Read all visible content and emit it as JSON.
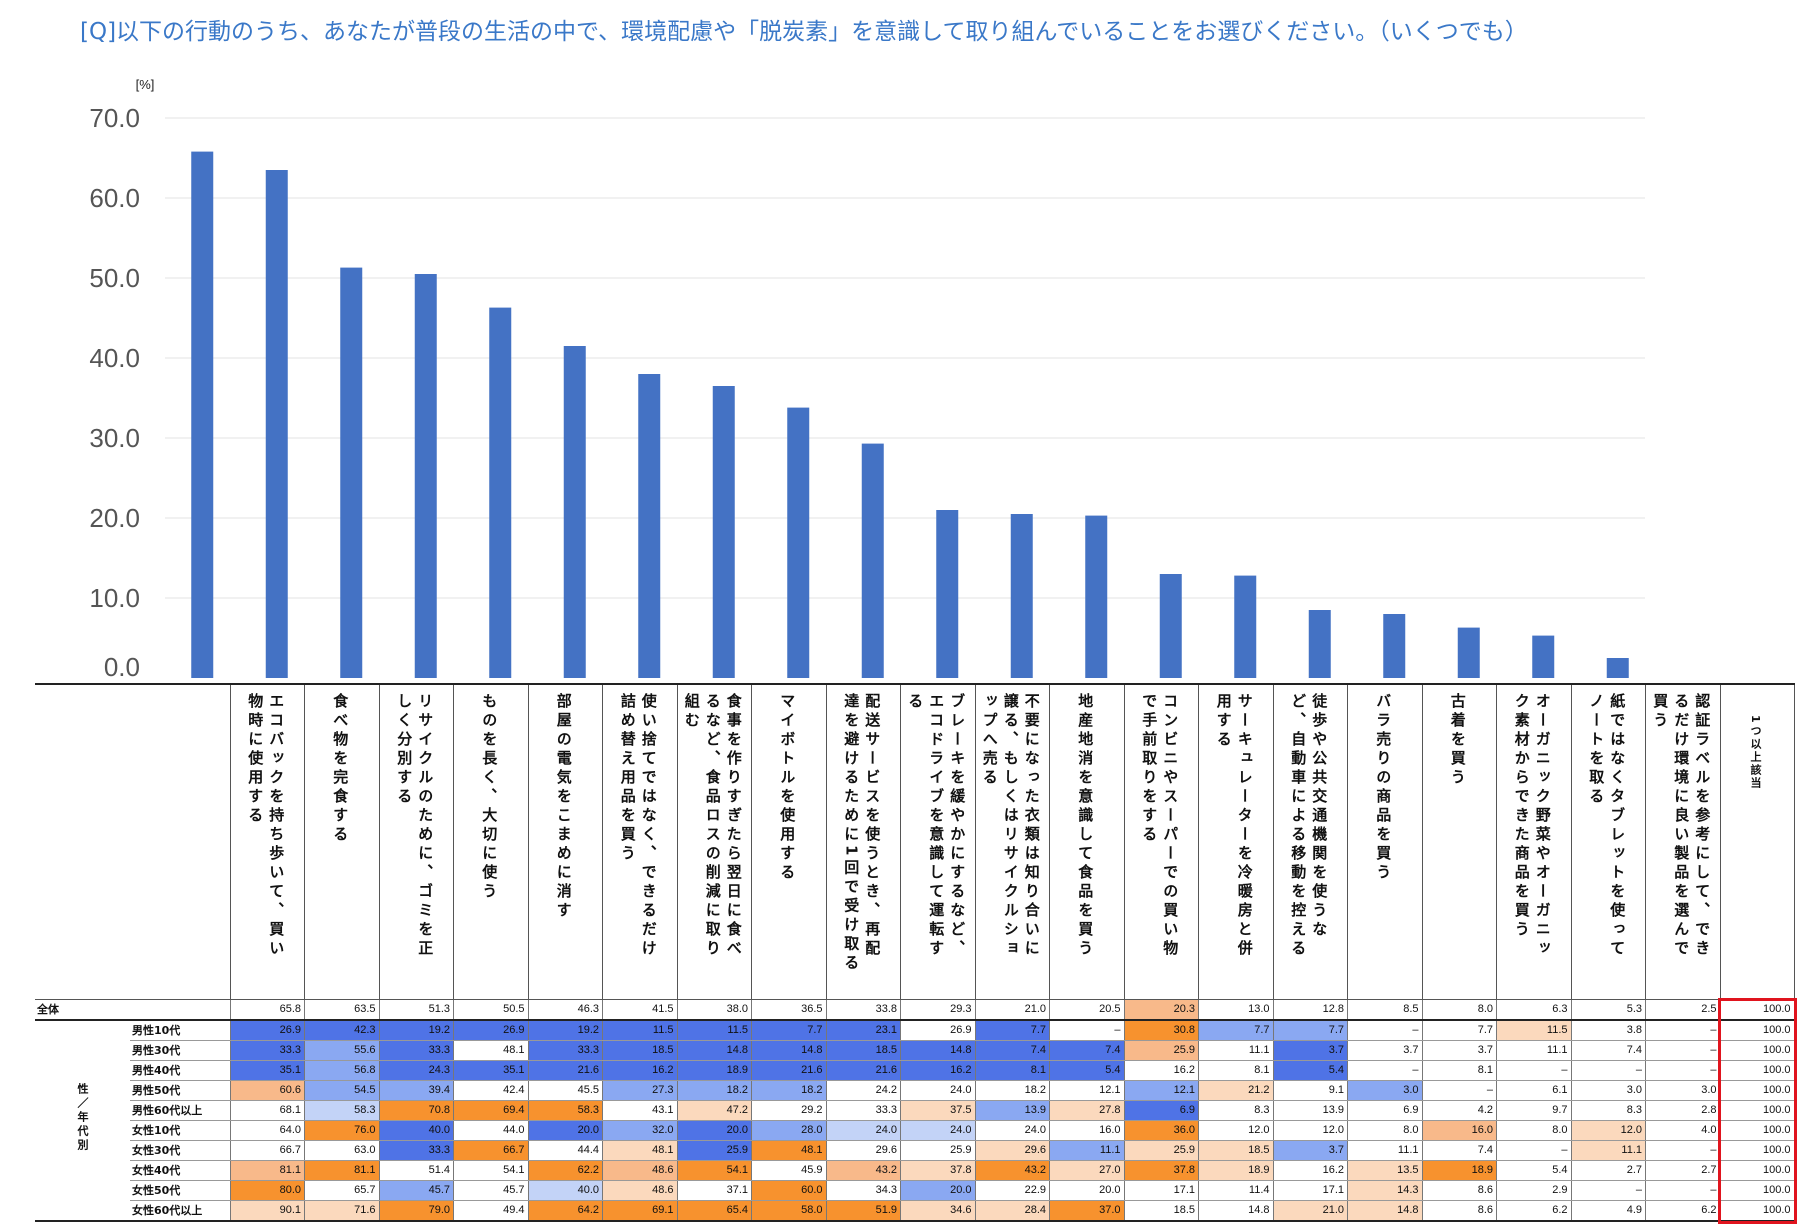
{
  "question": "[Q]以下の行動のうち、あなたが普段の生活の中で、環境配慮や「脱炭素」を意識して取り組んでいることをお選びください。（いくつでも）",
  "colors": {
    "bar": "#4472c4",
    "question": "#3a78c8",
    "highlight_box": "#e0141e",
    "blue_dark": "#4f73e6",
    "blue_mid": "#8aa8f2",
    "blue_light": "#c3d3f7",
    "orange_dark": "#f7922e",
    "orange_mid": "#f8b98a",
    "orange_light": "#fbd9bd"
  },
  "chart_data": {
    "type": "bar",
    "unit_label": "[%]",
    "ylim": [
      0,
      70
    ],
    "yticks": [
      "0.0",
      "10.0",
      "20.0",
      "30.0",
      "40.0",
      "50.0",
      "60.0",
      "70.0"
    ],
    "grid": true,
    "categories": [
      "エコバックを持ち歩いて、買い物時に使用する",
      "食べ物を完食する",
      "リサイクルのために、ゴミを正しく分別する",
      "ものを長く、大切に使う",
      "部屋の電気をこまめに消す",
      "使い捨てではなく、できるだけ詰め替え用品を買う",
      "食事を作りすぎたら翌日に食べるなど、食品ロスの削減に取り組む",
      "マイボトルを使用する",
      "配送サービスを使うとき、再配達を避けるために1回で受け取る",
      "ブレーキを緩やかにするなど、エコドライブを意識して運転する",
      "不要になった衣類は知り合いに譲る、もしくはリサイクルショップへ売る",
      "地産地消を意識して食品を買う",
      "コンビニやスーパーでの買い物で手前取りをする",
      "サーキュレーターを冷暖房と併用する",
      "徒歩や公共交通機関を使うなど、自動車による移動を控える",
      "バラ売りの商品を買う",
      "古着を買う",
      "オーガニック野菜やオーガニック素材からできた商品を買う",
      "紙ではなくタブレットを使ってノートを取る",
      "認証ラベルを参考にして、できるだけ環境に良い製品を選んで買う"
    ],
    "values": [
      65.8,
      63.5,
      51.3,
      50.5,
      46.3,
      41.5,
      38.0,
      36.5,
      33.8,
      29.3,
      21.0,
      20.5,
      20.3,
      13.0,
      12.8,
      8.5,
      8.0,
      6.3,
      5.3,
      2.5
    ]
  },
  "table": {
    "last_header": "1つ以上該当",
    "group_label": "性／年代別",
    "rows": [
      {
        "label": "全体",
        "values": [
          "65.8",
          "63.5",
          "51.3",
          "50.5",
          "46.3",
          "41.5",
          "38.0",
          "36.5",
          "33.8",
          "29.3",
          "21.0",
          "20.5",
          "20.3",
          "13.0",
          "12.8",
          "8.5",
          "8.0",
          "6.3",
          "5.3",
          "2.5",
          "100.0"
        ],
        "colors": [
          "",
          "",
          "",
          "",
          "",
          "",
          "",
          "",
          "",
          "",
          "",
          "",
          "o2",
          "",
          "",
          "",
          "",
          "",
          "",
          "",
          ""
        ]
      },
      {
        "label": "男性10代",
        "values": [
          "26.9",
          "42.3",
          "19.2",
          "26.9",
          "19.2",
          "11.5",
          "11.5",
          "7.7",
          "23.1",
          "26.9",
          "7.7",
          "–",
          "30.8",
          "7.7",
          "7.7",
          "–",
          "7.7",
          "11.5",
          "3.8",
          "–",
          "100.0"
        ],
        "colors": [
          "b1",
          "b1",
          "b1",
          "b1",
          "b1",
          "b1",
          "b1",
          "b1",
          "b1",
          "",
          "b1",
          "",
          "o1",
          "b2",
          "b2",
          "",
          "",
          "o3",
          "",
          "",
          ""
        ]
      },
      {
        "label": "男性30代",
        "values": [
          "33.3",
          "55.6",
          "33.3",
          "48.1",
          "33.3",
          "18.5",
          "14.8",
          "14.8",
          "18.5",
          "14.8",
          "7.4",
          "7.4",
          "25.9",
          "11.1",
          "3.7",
          "3.7",
          "3.7",
          "11.1",
          "7.4",
          "–",
          "100.0"
        ],
        "colors": [
          "b1",
          "b2",
          "b1",
          "",
          "b1",
          "b1",
          "b1",
          "b1",
          "b1",
          "b1",
          "b1",
          "b1",
          "o2",
          "",
          "b1",
          "",
          "",
          "",
          "",
          "",
          ""
        ]
      },
      {
        "label": "男性40代",
        "values": [
          "35.1",
          "56.8",
          "24.3",
          "35.1",
          "21.6",
          "16.2",
          "18.9",
          "21.6",
          "21.6",
          "16.2",
          "8.1",
          "5.4",
          "16.2",
          "8.1",
          "5.4",
          "–",
          "8.1",
          "–",
          "–",
          "–",
          "100.0"
        ],
        "colors": [
          "b1",
          "b2",
          "b1",
          "b1",
          "b1",
          "b1",
          "b1",
          "b1",
          "b1",
          "b1",
          "b1",
          "b1",
          "",
          "",
          "b1",
          "",
          "",
          "",
          "",
          "",
          ""
        ]
      },
      {
        "label": "男性50代",
        "values": [
          "60.6",
          "54.5",
          "39.4",
          "42.4",
          "45.5",
          "27.3",
          "18.2",
          "18.2",
          "24.2",
          "24.0",
          "18.2",
          "12.1",
          "12.1",
          "21.2",
          "9.1",
          "3.0",
          "–",
          "6.1",
          "3.0",
          "3.0",
          "100.0"
        ],
        "colors": [
          "o2",
          "b2",
          "b2",
          "",
          "",
          "b2",
          "b2",
          "b2",
          "",
          "",
          "",
          "",
          "b2",
          "o3",
          "",
          "b2",
          "",
          "",
          "",
          "",
          ""
        ]
      },
      {
        "label": "男性60代以上",
        "values": [
          "68.1",
          "58.3",
          "70.8",
          "69.4",
          "58.3",
          "43.1",
          "47.2",
          "29.2",
          "33.3",
          "37.5",
          "13.9",
          "27.8",
          "6.9",
          "8.3",
          "13.9",
          "6.9",
          "4.2",
          "9.7",
          "8.3",
          "2.8",
          "100.0"
        ],
        "colors": [
          "",
          "b3",
          "o1",
          "o1",
          "o1",
          "",
          "o3",
          "",
          "",
          "o3",
          "b2",
          "o3",
          "b1",
          "",
          "",
          "",
          "",
          "",
          "",
          "",
          ""
        ]
      },
      {
        "label": "女性10代",
        "values": [
          "64.0",
          "76.0",
          "40.0",
          "44.0",
          "20.0",
          "32.0",
          "20.0",
          "28.0",
          "24.0",
          "24.0",
          "24.0",
          "16.0",
          "36.0",
          "12.0",
          "12.0",
          "8.0",
          "16.0",
          "8.0",
          "12.0",
          "4.0",
          "100.0"
        ],
        "colors": [
          "",
          "o1",
          "b1",
          "",
          "b1",
          "b2",
          "b1",
          "b2",
          "b3",
          "b3",
          "",
          "",
          "o1",
          "",
          "",
          "",
          "o2",
          "",
          "o3",
          "",
          ""
        ]
      },
      {
        "label": "女性30代",
        "values": [
          "66.7",
          "63.0",
          "33.3",
          "66.7",
          "44.4",
          "48.1",
          "25.9",
          "48.1",
          "29.6",
          "25.9",
          "29.6",
          "11.1",
          "25.9",
          "18.5",
          "3.7",
          "11.1",
          "7.4",
          "–",
          "11.1",
          "–",
          "100.0"
        ],
        "colors": [
          "",
          "",
          "b1",
          "o1",
          "",
          "o3",
          "b1",
          "o1",
          "",
          "",
          "o3",
          "b2",
          "o3",
          "o3",
          "b2",
          "",
          "",
          "",
          "o3",
          "",
          ""
        ]
      },
      {
        "label": "女性40代",
        "values": [
          "81.1",
          "81.1",
          "51.4",
          "54.1",
          "62.2",
          "48.6",
          "54.1",
          "45.9",
          "43.2",
          "37.8",
          "43.2",
          "27.0",
          "37.8",
          "18.9",
          "16.2",
          "13.5",
          "18.9",
          "5.4",
          "2.7",
          "2.7",
          "100.0"
        ],
        "colors": [
          "o2",
          "o1",
          "",
          "",
          "o1",
          "o2",
          "o1",
          "",
          "o2",
          "o3",
          "o1",
          "o3",
          "o1",
          "o3",
          "",
          "o3",
          "o1",
          "",
          "",
          "",
          ""
        ]
      },
      {
        "label": "女性50代",
        "values": [
          "80.0",
          "65.7",
          "45.7",
          "45.7",
          "40.0",
          "48.6",
          "37.1",
          "60.0",
          "34.3",
          "20.0",
          "22.9",
          "20.0",
          "17.1",
          "11.4",
          "17.1",
          "14.3",
          "8.6",
          "2.9",
          "–",
          "–",
          "100.0"
        ],
        "colors": [
          "o1",
          "",
          "b2",
          "",
          "b3",
          "o3",
          "",
          "o1",
          "",
          "b2",
          "",
          "",
          "",
          "",
          "",
          "o3",
          "",
          "",
          "",
          "",
          ""
        ]
      },
      {
        "label": "女性60代以上",
        "values": [
          "90.1",
          "71.6",
          "79.0",
          "49.4",
          "64.2",
          "69.1",
          "65.4",
          "58.0",
          "51.9",
          "34.6",
          "28.4",
          "37.0",
          "18.5",
          "14.8",
          "21.0",
          "14.8",
          "8.6",
          "6.2",
          "4.9",
          "6.2",
          "100.0"
        ],
        "colors": [
          "o3",
          "o3",
          "o1",
          "",
          "o1",
          "o1",
          "o1",
          "o1",
          "o1",
          "o3",
          "o3",
          "o1",
          "",
          "",
          "o3",
          "o3",
          "",
          "",
          "",
          "",
          ""
        ]
      }
    ]
  }
}
